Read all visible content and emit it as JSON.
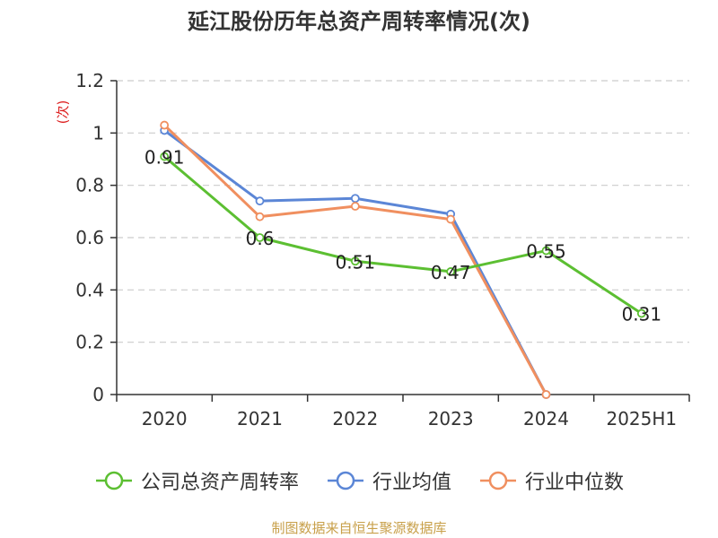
{
  "title": "延江股份历年总资产周转率情况(次)",
  "source": "制图数据来自恒生聚源数据库",
  "chart_data": {
    "type": "line",
    "title": "延江股份历年总资产周转率情况(次)",
    "ylabel": "(次)",
    "ylim": [
      0,
      1.2
    ],
    "yticks": [
      "0",
      "0.2",
      "0.4",
      "0.6",
      "0.8",
      "1",
      "1.2"
    ],
    "categories": [
      "2020",
      "2021",
      "2022",
      "2023",
      "2024",
      "2025H1"
    ],
    "grid": true,
    "legend": "bottom",
    "series": [
      {
        "name": "公司总资产周转率",
        "color": "#5cbf32",
        "values": [
          0.91,
          0.6,
          0.51,
          0.47,
          0.55,
          0.31
        ],
        "labels": [
          "0.91",
          "0.6",
          "0.51",
          "0.47",
          "0.55",
          "0.31"
        ]
      },
      {
        "name": "行业均值",
        "color": "#5b86d6",
        "values": [
          1.01,
          0.74,
          0.75,
          0.69,
          0.0,
          null
        ]
      },
      {
        "name": "行业中位数",
        "color": "#f08f5f",
        "values": [
          1.03,
          0.68,
          0.72,
          0.67,
          0.0,
          null
        ]
      }
    ]
  }
}
